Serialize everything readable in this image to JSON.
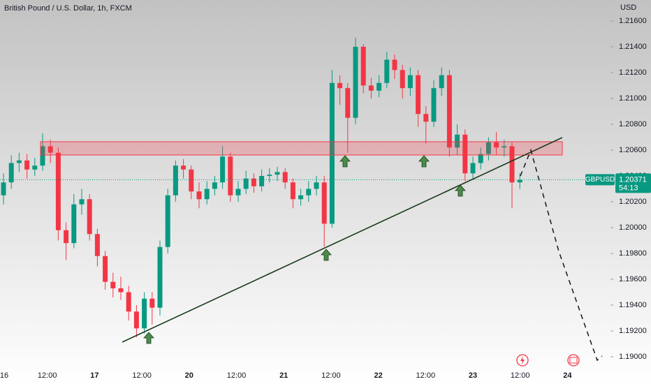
{
  "header": {
    "title": "British Pound / U.S. Dollar, 1h, FXCM",
    "currency": "USD"
  },
  "chart_data": {
    "type": "candlestick",
    "open": [
      1.2025,
      1.2035,
      1.205,
      1.2052,
      1.2045,
      1.2048,
      1.2063,
      1.2058,
      1.1998,
      1.1988,
      1.2018,
      1.2022,
      1.1995,
      1.1978,
      1.1958,
      1.1953,
      1.195,
      1.1935,
      1.1922,
      1.1945,
      1.1938,
      1.1985,
      1.2025,
      1.2048,
      1.2045,
      1.2028,
      1.2022,
      1.203,
      1.2035,
      1.2055,
      1.2025,
      1.203,
      1.2038,
      1.2032,
      1.204,
      1.2041,
      1.2043,
      1.2035,
      1.2022,
      1.2025,
      1.203,
      1.2035,
      1.2003,
      1.2112,
      1.2108,
      1.2085,
      1.214,
      1.211,
      1.2106,
      1.2112,
      1.213,
      1.2122,
      1.2108,
      1.2118,
      1.2088,
      1.2082,
      1.2108,
      1.2118,
      1.2062,
      1.2072,
      1.2042,
      1.205,
      1.2057,
      1.2066,
      1.2062,
      1.2063,
      1.2035
    ],
    "high": [
      1.2042,
      1.2056,
      1.2058,
      1.2057,
      1.2054,
      1.2073,
      1.2068,
      1.2062,
      1.2004,
      1.2026,
      1.203,
      1.2026,
      1.1999,
      1.1982,
      1.1965,
      1.1962,
      1.1955,
      1.194,
      1.195,
      1.195,
      1.199,
      1.203,
      1.2052,
      1.2053,
      1.2048,
      1.2035,
      1.2036,
      1.204,
      1.2063,
      1.2058,
      1.2036,
      1.2044,
      1.2042,
      1.2045,
      1.2046,
      1.2047,
      1.2046,
      1.2038,
      1.203,
      1.2036,
      1.204,
      1.204,
      1.2122,
      1.2118,
      1.2112,
      1.2147,
      1.2142,
      1.2116,
      1.2118,
      1.2136,
      1.2134,
      1.2126,
      1.2124,
      1.2122,
      1.2094,
      1.2114,
      1.2124,
      1.2122,
      1.208,
      1.2076,
      1.2055,
      1.2062,
      1.207,
      1.2074,
      1.2068,
      1.2066,
      1.2042
    ],
    "low": [
      1.2018,
      1.203,
      1.2043,
      1.2038,
      1.204,
      1.2044,
      1.205,
      1.199,
      1.1975,
      1.1984,
      1.201,
      1.199,
      1.197,
      1.1952,
      1.1946,
      1.1944,
      1.1928,
      1.1915,
      1.1918,
      1.1925,
      1.1932,
      1.198,
      1.202,
      1.2038,
      1.2022,
      1.2015,
      1.2018,
      1.2025,
      1.203,
      1.202,
      1.202,
      1.2026,
      1.2027,
      1.2028,
      1.2035,
      1.2036,
      1.203,
      1.2015,
      1.2017,
      1.202,
      1.2025,
      1.1985,
      1.2,
      1.2095,
      1.2058,
      1.208,
      1.2104,
      1.21,
      1.2101,
      1.2108,
      1.2115,
      1.21,
      1.2102,
      1.2078,
      1.2065,
      1.2078,
      1.2102,
      1.2055,
      1.2056,
      1.2036,
      1.2038,
      1.2045,
      1.2052,
      1.2056,
      1.2055,
      1.2015,
      1.203
    ],
    "close": [
      1.2035,
      1.205,
      1.2052,
      1.2045,
      1.2048,
      1.2063,
      1.2058,
      1.1998,
      1.1988,
      1.2018,
      1.2022,
      1.1995,
      1.1978,
      1.1958,
      1.1953,
      1.195,
      1.1935,
      1.1922,
      1.1945,
      1.1938,
      1.1985,
      1.2025,
      1.2048,
      1.2045,
      1.2028,
      1.2022,
      1.203,
      1.2035,
      1.2055,
      1.2025,
      1.203,
      1.2038,
      1.2032,
      1.204,
      1.2041,
      1.2043,
      1.2035,
      1.2022,
      1.2025,
      1.203,
      1.2035,
      1.2003,
      1.2112,
      1.2108,
      1.2085,
      1.214,
      1.211,
      1.2106,
      1.2112,
      1.213,
      1.2122,
      1.2108,
      1.2118,
      1.2088,
      1.2082,
      1.2108,
      1.2118,
      1.2062,
      1.2072,
      1.2042,
      1.205,
      1.2057,
      1.2066,
      1.2062,
      1.2063,
      1.2035,
      1.2037
    ],
    "up_color": "#089981",
    "down_color": "#f23645",
    "ylim": [
      1.19,
      1.216
    ],
    "yticks": [
      {
        "value": 1.19,
        "label": "1.19000"
      },
      {
        "value": 1.192,
        "label": "1.19200"
      },
      {
        "value": 1.194,
        "label": "1.19400"
      },
      {
        "value": 1.196,
        "label": "1.19600"
      },
      {
        "value": 1.198,
        "label": "1.19800"
      },
      {
        "value": 1.2,
        "label": "1.20000"
      },
      {
        "value": 1.202,
        "label": "1.20200"
      },
      {
        "value": 1.204,
        "label": "1.20400"
      },
      {
        "value": 1.206,
        "label": "1.20600"
      },
      {
        "value": 1.208,
        "label": "1.20800"
      },
      {
        "value": 1.21,
        "label": "1.21000"
      },
      {
        "value": 1.212,
        "label": "1.21200"
      },
      {
        "value": 1.214,
        "label": "1.21400"
      },
      {
        "value": 1.216,
        "label": "1.21600"
      }
    ],
    "x_labels": [
      "16",
      "12:00",
      "17",
      "12:00",
      "20",
      "12:00",
      "21",
      "12:00",
      "22",
      "12:00",
      "23",
      "12:00",
      "24"
    ],
    "symbol": "GBPUSD",
    "last_price": 1.20371,
    "countdown": "54:13"
  }
}
